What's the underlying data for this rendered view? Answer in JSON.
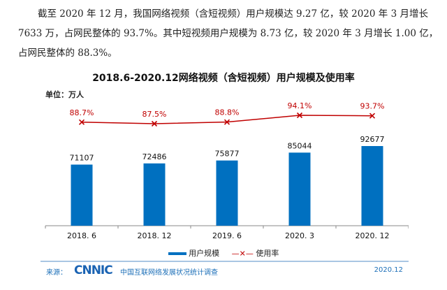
{
  "paragraph": {
    "line1": "截至 2020 年 12 月，我国网络视频（含短视频）用户规模达 9.27 亿，较 2020 年 3 月增长",
    "line2": "7633 万，占网民整体的 93.7%。其中短视频用户规模为 8.73 亿，较 2020 年 3 月增长 1.00 亿，",
    "line3": "占网民整体的 88.3%。"
  },
  "chart_data": {
    "type": "bar",
    "title": "2018.6-2020.12网络视频（含短视频）用户规模及使用率",
    "unit_label": "单位：万人",
    "categories": [
      "2018. 6",
      "2018. 12",
      "2019. 6",
      "2020. 3",
      "2020. 12"
    ],
    "series": [
      {
        "name": "用户规模",
        "type": "bar",
        "color": "#0070c0",
        "values": [
          71107,
          72486,
          75877,
          85044,
          92677
        ],
        "labels": [
          "71107",
          "72486",
          "75877",
          "85044",
          "92677"
        ]
      },
      {
        "name": "使用率",
        "type": "line",
        "color": "#c00000",
        "values": [
          88.7,
          87.5,
          88.8,
          94.1,
          93.7
        ],
        "labels": [
          "88.7%",
          "87.5%",
          "88.8%",
          "94.1%",
          "93.7%"
        ]
      }
    ],
    "legend_position": "bottom-center",
    "grid": false
  },
  "footer": {
    "source_label": "来源：",
    "logo_text": "CNNIC",
    "survey_name": "中国互联网络发展状况统计调查",
    "date": "2020.12"
  }
}
